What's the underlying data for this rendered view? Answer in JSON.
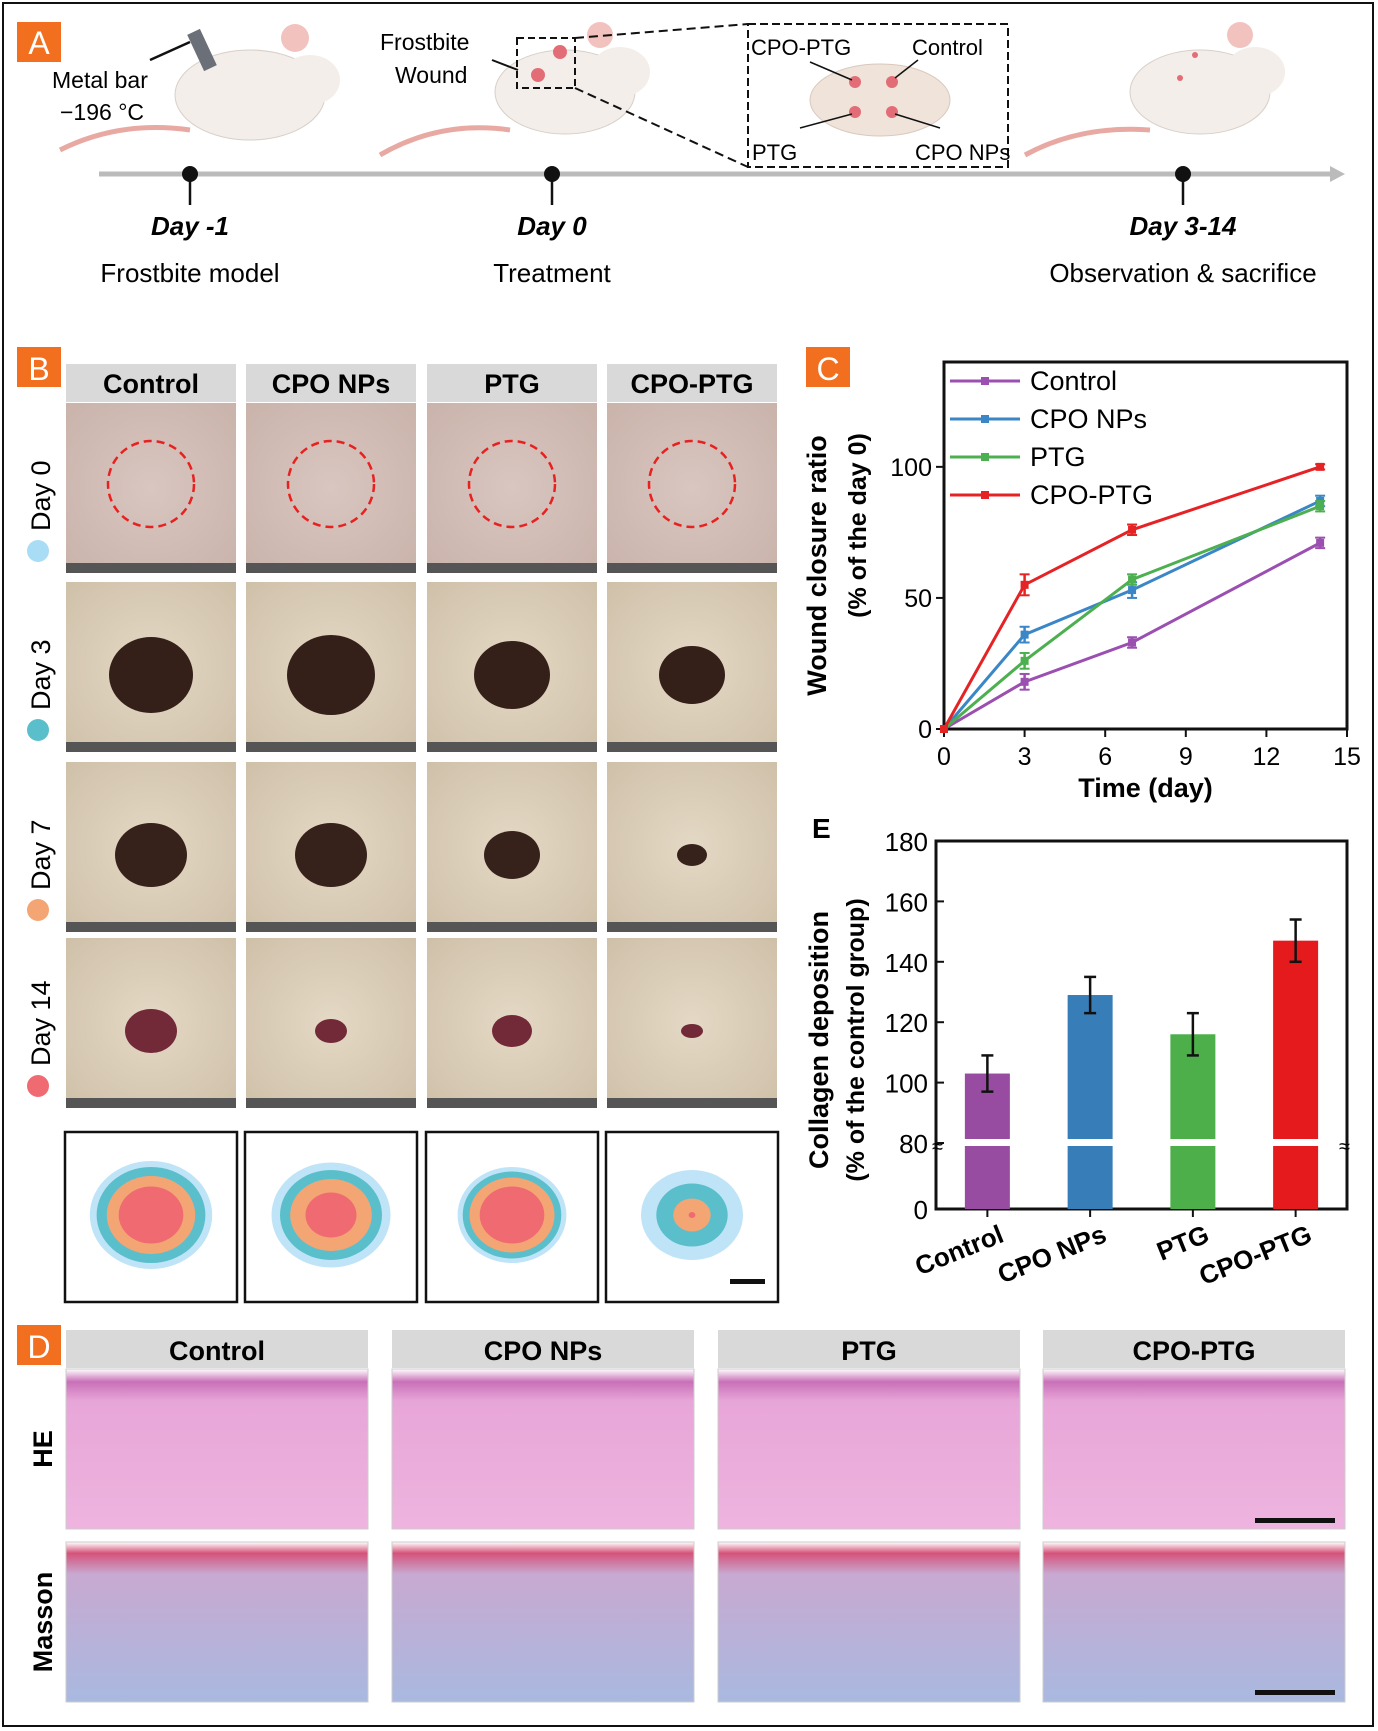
{
  "panel_labels": {
    "a": "A",
    "b": "B",
    "c": "C",
    "d": "D",
    "e": "E"
  },
  "panel_a": {
    "metal_bar_label": "Metal bar",
    "temperature_label": "−196 °C",
    "frostbite_wound_label_1": "Frostbite",
    "frostbite_wound_label_2": "Wound",
    "inset_labels": {
      "cpo_ptg": "CPO-PTG",
      "control": "Control",
      "ptg": "PTG",
      "cpo_nps": "CPO NPs"
    },
    "timeline": [
      {
        "day": "Day -1",
        "label": "Frostbite model"
      },
      {
        "day": "Day 0",
        "label": "Treatment"
      },
      {
        "day": "Day 3-14",
        "label": "Observation & sacrifice"
      }
    ]
  },
  "panel_b": {
    "columns": [
      "Control",
      "CPO NPs",
      "PTG",
      "CPO-PTG"
    ],
    "rows": [
      {
        "label": "Day 0",
        "color": "#a9dcf5"
      },
      {
        "label": "Day 3",
        "color": "#5bbfcb"
      },
      {
        "label": "Day 7",
        "color": "#f4a574"
      },
      {
        "label": "Day 14",
        "color": "#f06a72"
      }
    ]
  },
  "panel_d": {
    "columns": [
      "Control",
      "CPO NPs",
      "PTG",
      "CPO-PTG"
    ],
    "rows": [
      "HE",
      "Masson"
    ]
  },
  "chart_data": [
    {
      "type": "line",
      "panel": "C",
      "xlabel": "Time (day)",
      "ylabel": "Wound closure ratio",
      "ylabel2": "(% of the day 0)",
      "x": [
        0,
        3,
        7,
        14
      ],
      "xlim": [
        0,
        15
      ],
      "xticks": [
        "0",
        "3",
        "6",
        "9",
        "12",
        "15"
      ],
      "ylim": [
        0,
        140
      ],
      "yticks": [
        "0",
        "50",
        "100"
      ],
      "legend_position": "top-left",
      "series": [
        {
          "name": "Control",
          "color": "#9b4fb0",
          "values": [
            0,
            18,
            33,
            71
          ],
          "errors": [
            0,
            3,
            2,
            2
          ]
        },
        {
          "name": "CPO NPs",
          "color": "#3a86c6",
          "values": [
            0,
            36,
            53,
            87
          ],
          "errors": [
            0,
            3,
            3,
            2
          ]
        },
        {
          "name": "PTG",
          "color": "#4caf50",
          "values": [
            0,
            26,
            57,
            85
          ],
          "errors": [
            0,
            3,
            2,
            2
          ]
        },
        {
          "name": "CPO-PTG",
          "color": "#e52325",
          "values": [
            0,
            55,
            76,
            100
          ],
          "errors": [
            0,
            4,
            2,
            1
          ]
        }
      ]
    },
    {
      "type": "bar",
      "panel": "E",
      "ylabel": "Collagen deposition",
      "ylabel2": "(% of the control group)",
      "categories": [
        "Control",
        "CPO NPs",
        "PTG",
        "CPO-PTG"
      ],
      "values": [
        103,
        129,
        116,
        147
      ],
      "errors": [
        6,
        6,
        7,
        7
      ],
      "colors": [
        "#974ca1",
        "#377eb8",
        "#4daf4a",
        "#e41a1c"
      ],
      "ylim": [
        0,
        180
      ],
      "axis_break": [
        0,
        80
      ],
      "yticks": [
        "0",
        "80",
        "100",
        "120",
        "140",
        "160",
        "180"
      ]
    }
  ]
}
